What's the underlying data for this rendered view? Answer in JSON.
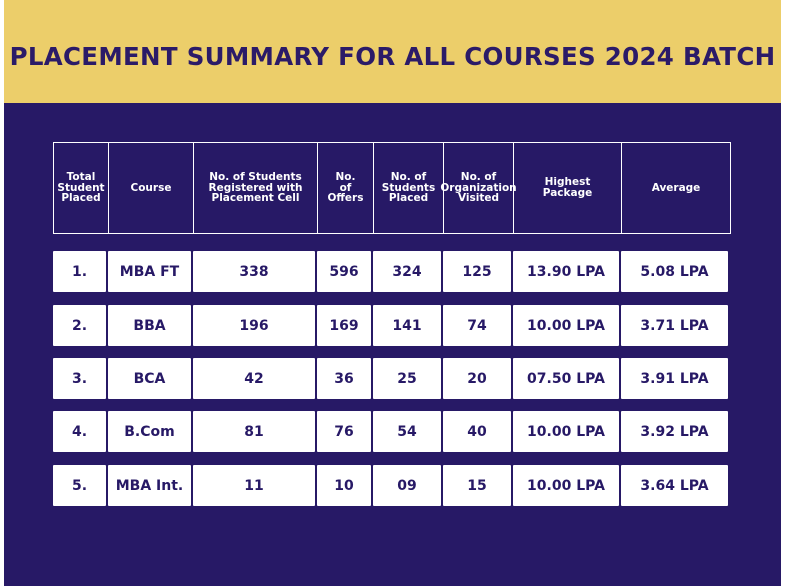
{
  "title": "PLACEMENT SUMMARY FOR ALL COURSES 2024 BATCH",
  "colors": {
    "banner_background": "#ecce6a",
    "panel_background": "#271966",
    "title_text": "#2b1b68",
    "header_text": "#ffffff",
    "row_background": "#ffffff",
    "row_text": "#271966"
  },
  "table": {
    "headers": [
      "Total\nStudent\nPlaced",
      "Course",
      "No. of Students\nRegistered with\nPlacement Cell",
      "No.\nof\nOffers",
      "No.  of\nStudents\nPlaced",
      "No.  of\nOrganization\nVisited",
      "Highest\nPackage",
      "Average"
    ],
    "rows": [
      [
        "1.",
        "MBA FT",
        "338",
        "596",
        "324",
        "125",
        "13.90 LPA",
        "5.08 LPA"
      ],
      [
        "2.",
        "BBA",
        "196",
        "169",
        "141",
        "74",
        "10.00 LPA",
        "3.71 LPA"
      ],
      [
        "3.",
        "BCA",
        "42",
        "36",
        "25",
        "20",
        "07.50 LPA",
        "3.91 LPA"
      ],
      [
        "4.",
        "B.Com",
        "81",
        "76",
        "54",
        "40",
        "10.00 LPA",
        "3.92 LPA"
      ],
      [
        "5.",
        "MBA Int.",
        "11",
        "10",
        "09",
        "15",
        "10.00 LPA",
        "3.64 LPA"
      ]
    ]
  }
}
